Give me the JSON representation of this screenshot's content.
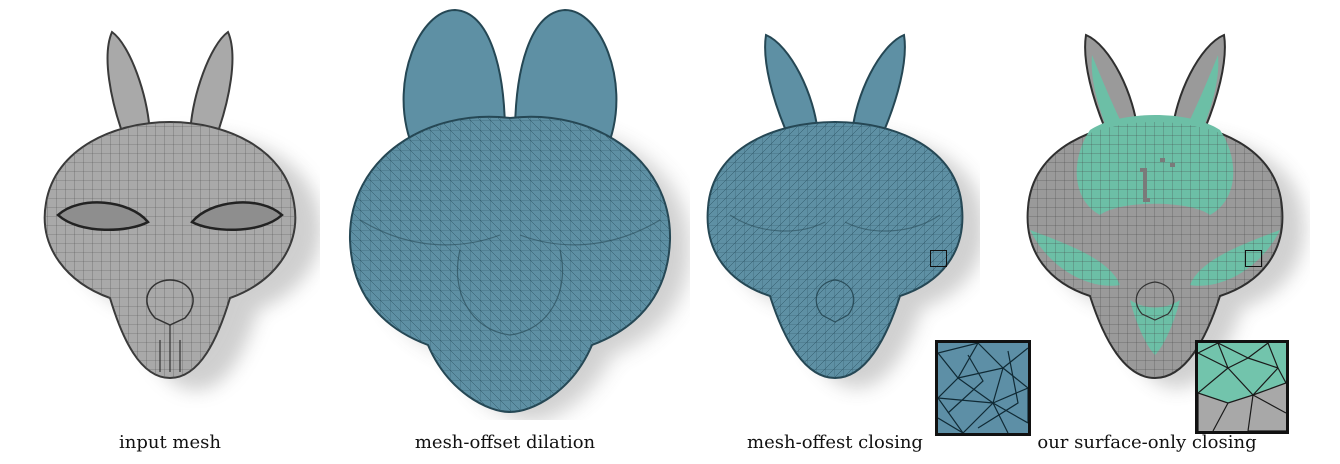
{
  "figure": {
    "panels": [
      {
        "caption": "input mesh",
        "fill": "#a9a9a9",
        "stroke": "#3a3a3a",
        "icon": "bunny-head-gray"
      },
      {
        "caption": "mesh-offset dilation",
        "fill": "#5e90a4",
        "stroke": "#254754",
        "icon": "bunny-head-dilated"
      },
      {
        "caption": "mesh-offest closing",
        "fill": "#5e90a4",
        "stroke": "#254754",
        "icon": "bunny-head-closed"
      },
      {
        "caption": "our surface-only closing",
        "fill": "#9a9a9a",
        "accent": "#6cbfa6",
        "stroke": "#2f2f2f",
        "icon": "bunny-head-surface-closing"
      }
    ],
    "inset_colors": {
      "blue": "#5d8fa6",
      "teal": "#72c4ac",
      "gray": "#a8a8a8"
    }
  }
}
